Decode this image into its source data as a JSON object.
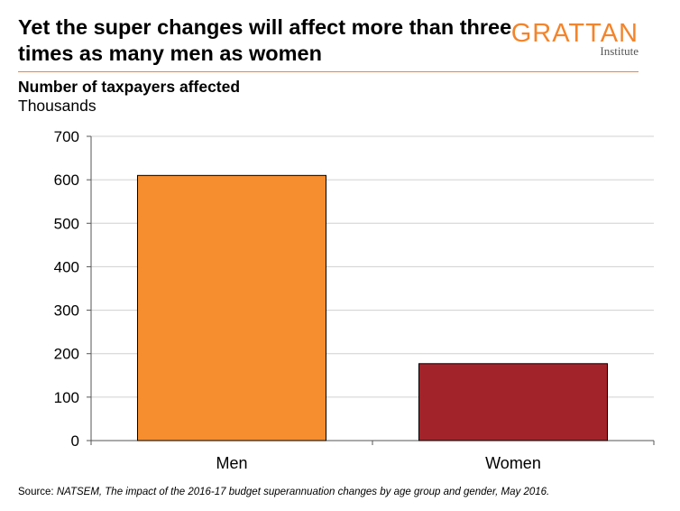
{
  "header": {
    "title": "Yet the super changes will affect more than three times as many men as women",
    "logo_word": "GRATTAN",
    "logo_sub": "Institute"
  },
  "subtitle": "Number of taxpayers affected",
  "unit_label": "Thousands",
  "source": {
    "prefix": "Source: ",
    "text": "NATSEM, The impact of the 2016-17 budget superannuation changes by age group and gender, May 2016."
  },
  "colors": {
    "accent": "#f3842b",
    "men_bar": "#f68d2e",
    "women_bar": "#a3232a",
    "grid": "#d0d0d0"
  },
  "chart_data": {
    "type": "bar",
    "categories": [
      "Men",
      "Women"
    ],
    "values": [
      610,
      177
    ],
    "ylim": [
      0,
      700
    ],
    "yticks": [
      0,
      100,
      200,
      300,
      400,
      500,
      600,
      700
    ],
    "grid": true,
    "bar_colors": [
      "#f68d2e",
      "#a3232a"
    ]
  }
}
